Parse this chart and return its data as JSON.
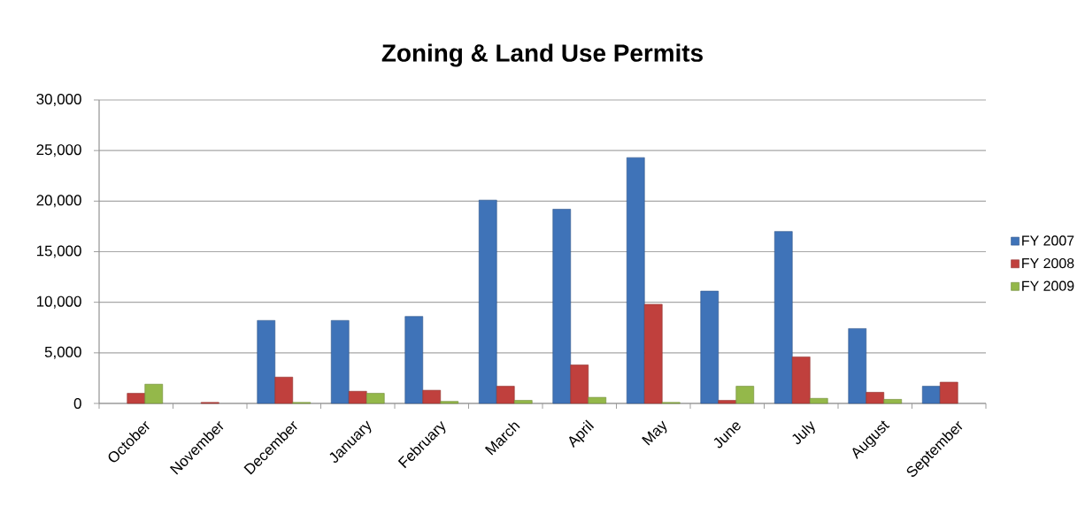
{
  "chart_data": {
    "type": "bar",
    "title": "Zoning & Land Use Permits",
    "categories": [
      "October",
      "November",
      "December",
      "January",
      "February",
      "March",
      "April",
      "May",
      "June",
      "July",
      "August",
      "September"
    ],
    "series": [
      {
        "name": "FY 2007",
        "color": "#3f73b8",
        "values": [
          null,
          null,
          8200,
          8200,
          8600,
          20100,
          19200,
          24300,
          11100,
          17000,
          7400,
          1700
        ]
      },
      {
        "name": "FY 2008",
        "color": "#c0403d",
        "values": [
          1000,
          100,
          2600,
          1200,
          1300,
          1700,
          3800,
          9800,
          300,
          4600,
          1100,
          2100
        ]
      },
      {
        "name": "FY 2009",
        "color": "#94b84a",
        "values": [
          1900,
          null,
          100,
          1000,
          200,
          300,
          600,
          100,
          1700,
          500,
          400,
          null
        ]
      }
    ],
    "ylim": [
      0,
      30000
    ],
    "yticks": [
      0,
      {
        "value": 5000,
        "label": "5,000"
      },
      {
        "value": 10000,
        "label": "10,000"
      },
      {
        "value": 15000,
        "label": "15,000"
      },
      {
        "value": 20000,
        "label": "20,000"
      },
      {
        "value": 25000,
        "label": "25,000"
      },
      {
        "value": 30000,
        "label": "30,000"
      }
    ],
    "grid": "y",
    "legend": "right"
  }
}
